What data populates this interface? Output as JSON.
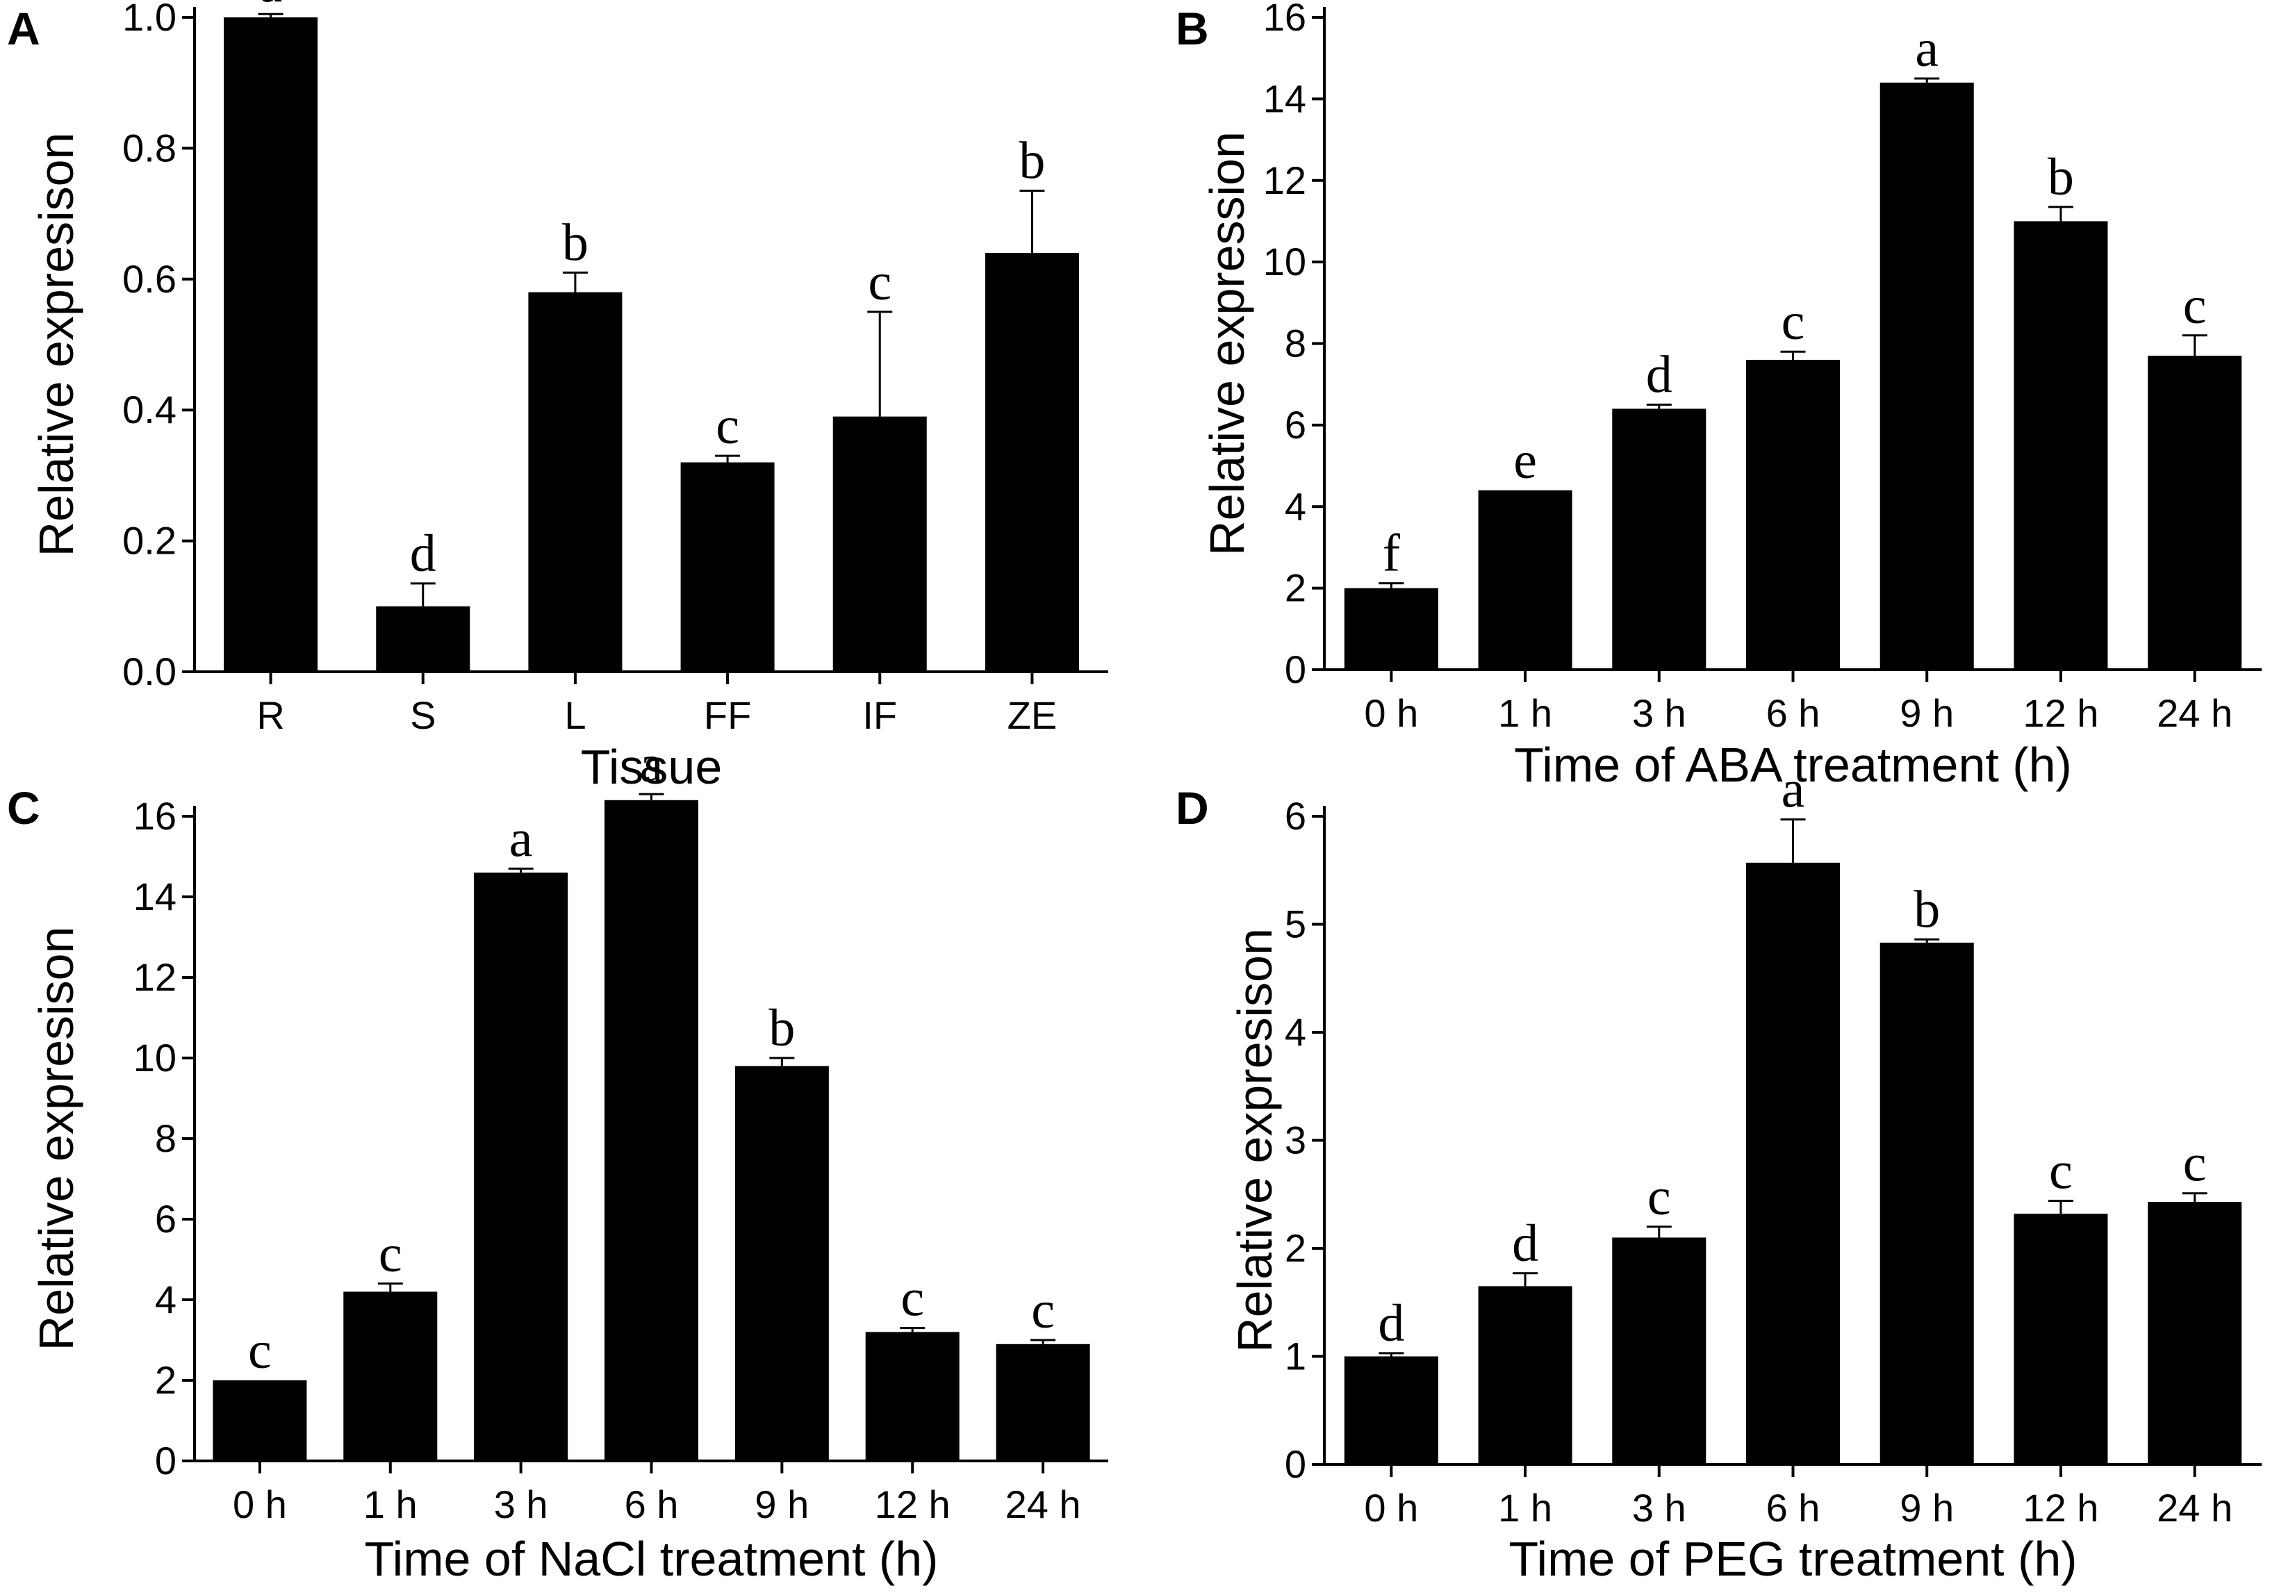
{
  "chart_data": [
    {
      "panel": "A",
      "type": "bar",
      "categories": [
        "R",
        "S",
        "L",
        "FF",
        "IF",
        "ZE"
      ],
      "values": [
        1.0,
        0.1,
        0.58,
        0.32,
        0.39,
        0.64
      ],
      "errors": [
        0.005,
        0.035,
        0.03,
        0.01,
        0.16,
        0.095
      ],
      "significance": [
        "a",
        "d",
        "b",
        "c",
        "c",
        "b"
      ],
      "xlabel": "Tissue",
      "ylabel": "Relative expresison",
      "ylim": [
        0,
        1.0
      ],
      "yticks": [
        "0.0",
        "0.2",
        "0.4",
        "0.6",
        "0.8",
        "1.0"
      ],
      "ytick_values": [
        0,
        0.2,
        0.4,
        0.6,
        0.8,
        1.0
      ],
      "bar_color": "#000000"
    },
    {
      "panel": "B",
      "type": "bar",
      "categories": [
        "0 h",
        "1 h",
        "3 h",
        "6 h",
        "9 h",
        "12 h",
        "24 h"
      ],
      "values": [
        2.0,
        4.4,
        6.4,
        7.6,
        14.4,
        11.0,
        7.7
      ],
      "errors": [
        0.12,
        0.0,
        0.1,
        0.2,
        0.1,
        0.35,
        0.5
      ],
      "significance": [
        "f",
        "e",
        "d",
        "c",
        "a",
        "b",
        "c"
      ],
      "xlabel": "Time of ABA treatment (h)",
      "ylabel": "Relative expression",
      "ylim": [
        0,
        16
      ],
      "yticks": [
        "0",
        "2",
        "4",
        "6",
        "8",
        "10",
        "12",
        "14",
        "16"
      ],
      "ytick_values": [
        0,
        2,
        4,
        6,
        8,
        10,
        12,
        14,
        16
      ],
      "bar_color": "#000000"
    },
    {
      "panel": "C",
      "type": "bar",
      "categories": [
        "0 h",
        "1 h",
        "3 h",
        "6 h",
        "9 h",
        "12 h",
        "24 h"
      ],
      "values": [
        2.0,
        4.2,
        14.6,
        16.4,
        9.8,
        3.2,
        2.9
      ],
      "errors": [
        0.0,
        0.2,
        0.1,
        0.15,
        0.2,
        0.1,
        0.1
      ],
      "significance": [
        "c",
        "c",
        "a",
        "a",
        "b",
        "c",
        "c"
      ],
      "xlabel": "Time of NaCl treatment (h)",
      "ylabel": "Relative expresison",
      "ylim": [
        0,
        16
      ],
      "yticks": [
        "0",
        "2",
        "4",
        "6",
        "8",
        "10",
        "12",
        "14",
        "16"
      ],
      "ytick_values": [
        0,
        2,
        4,
        6,
        8,
        10,
        12,
        14,
        16
      ],
      "bar_color": "#000000"
    },
    {
      "panel": "D",
      "type": "bar",
      "categories": [
        "0 h",
        "1 h",
        "3 h",
        "6 h",
        "9 h",
        "12 h",
        "24 h"
      ],
      "values": [
        1.0,
        1.65,
        2.1,
        5.57,
        4.83,
        2.32,
        2.43
      ],
      "errors": [
        0.03,
        0.12,
        0.1,
        0.4,
        0.03,
        0.12,
        0.08
      ],
      "significance": [
        "d",
        "d",
        "c",
        "a",
        "b",
        "c",
        "c"
      ],
      "xlabel": "Time of PEG treatment (h)",
      "ylabel": "Relative expresison",
      "ylim": [
        0,
        6
      ],
      "yticks": [
        "0",
        "1",
        "2",
        "3",
        "4",
        "5",
        "6"
      ],
      "ytick_values": [
        0,
        1,
        2,
        3,
        4,
        5,
        6
      ],
      "bar_color": "#000000"
    }
  ]
}
